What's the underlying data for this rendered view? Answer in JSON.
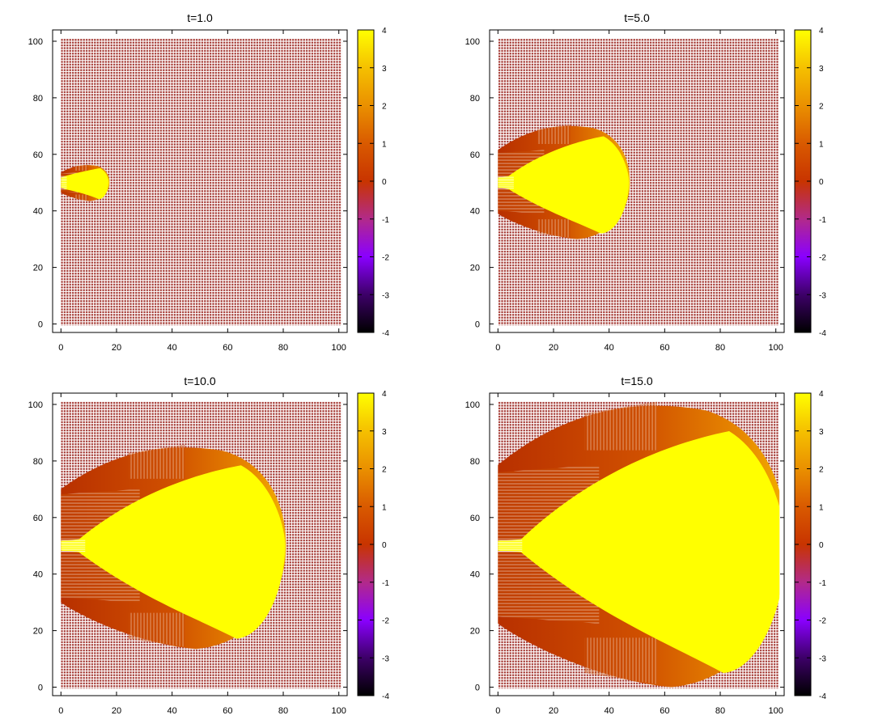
{
  "colormap": {
    "stops": [
      "#000000",
      "#3d0068",
      "#8a00ff",
      "#b22a8a",
      "#c83400",
      "#d95a00",
      "#ea9000",
      "#f5c000",
      "#ffff00"
    ],
    "background_cell": "#a0302a",
    "background_paper": "#ffffff"
  },
  "chart_data": [
    {
      "type": "heatmap",
      "title": "t=1.0",
      "xlim": [
        -3,
        103
      ],
      "ylim": [
        -3,
        104
      ],
      "xticks": [
        "0",
        "20",
        "40",
        "60",
        "80",
        "100"
      ],
      "yticks": [
        "0",
        "20",
        "40",
        "60",
        "80",
        "100"
      ],
      "xtick_values": [
        0,
        20,
        40,
        60,
        80,
        100
      ],
      "ytick_values": [
        0,
        20,
        40,
        60,
        80,
        100
      ],
      "colorbar": {
        "range": [
          -4,
          4
        ],
        "ticks": [
          "4",
          "3",
          "2",
          "1",
          "0",
          "-1",
          "-2",
          "-3",
          "-4"
        ]
      },
      "front": {
        "x_origin": 0,
        "center_y": 50,
        "x_max": 17.5,
        "top_y": 56.5,
        "bottom_y": 43.5
      },
      "core_level": 4,
      "shell_level": 1
    },
    {
      "type": "heatmap",
      "title": "t=5.0",
      "xlim": [
        -3,
        103
      ],
      "ylim": [
        -3,
        104
      ],
      "xticks": [
        "0",
        "20",
        "40",
        "60",
        "80",
        "100"
      ],
      "yticks": [
        "0",
        "20",
        "40",
        "60",
        "80",
        "100"
      ],
      "xtick_values": [
        0,
        20,
        40,
        60,
        80,
        100
      ],
      "ytick_values": [
        0,
        20,
        40,
        60,
        80,
        100
      ],
      "colorbar": {
        "range": [
          -4,
          4
        ],
        "ticks": [
          "4",
          "3",
          "2",
          "1",
          "0",
          "-1",
          "-2",
          "-3",
          "-4"
        ]
      },
      "front": {
        "x_origin": 0,
        "center_y": 50,
        "x_max": 47.5,
        "top_y": 71,
        "bottom_y": 30
      },
      "core_level": 4,
      "shell_level": 1
    },
    {
      "type": "heatmap",
      "title": "t=10.0",
      "xlim": [
        -3,
        103
      ],
      "ylim": [
        -3,
        104
      ],
      "xticks": [
        "0",
        "20",
        "40",
        "60",
        "80",
        "100"
      ],
      "yticks": [
        "0",
        "20",
        "40",
        "60",
        "80",
        "100"
      ],
      "xtick_values": [
        0,
        20,
        40,
        60,
        80,
        100
      ],
      "ytick_values": [
        0,
        20,
        40,
        60,
        80,
        100
      ],
      "colorbar": {
        "range": [
          -4,
          4
        ],
        "ticks": [
          "4",
          "3",
          "2",
          "1",
          "0",
          "-1",
          "-2",
          "-3",
          "-4"
        ]
      },
      "front": {
        "x_origin": 0,
        "center_y": 50,
        "x_max": 81,
        "top_y": 86.5,
        "bottom_y": 13.5
      },
      "core_level": 4,
      "shell_level": 1
    },
    {
      "type": "heatmap",
      "title": "t=15.0",
      "xlim": [
        -3,
        103
      ],
      "ylim": [
        -3,
        104
      ],
      "xticks": [
        "0",
        "20",
        "40",
        "60",
        "80",
        "100"
      ],
      "yticks": [
        "0",
        "20",
        "40",
        "60",
        "80",
        "100"
      ],
      "xtick_values": [
        0,
        20,
        40,
        60,
        80,
        100
      ],
      "ytick_values": [
        0,
        20,
        40,
        60,
        80,
        100
      ],
      "colorbar": {
        "range": [
          -4,
          4
        ],
        "ticks": [
          "4",
          "3",
          "2",
          "1",
          "0",
          "-1",
          "-2",
          "-3",
          "-4"
        ]
      },
      "front": {
        "x_origin": 0,
        "center_y": 50,
        "x_max": 104,
        "top_y": 102,
        "bottom_y": 0
      },
      "core_level": 4,
      "shell_level": 1
    }
  ]
}
